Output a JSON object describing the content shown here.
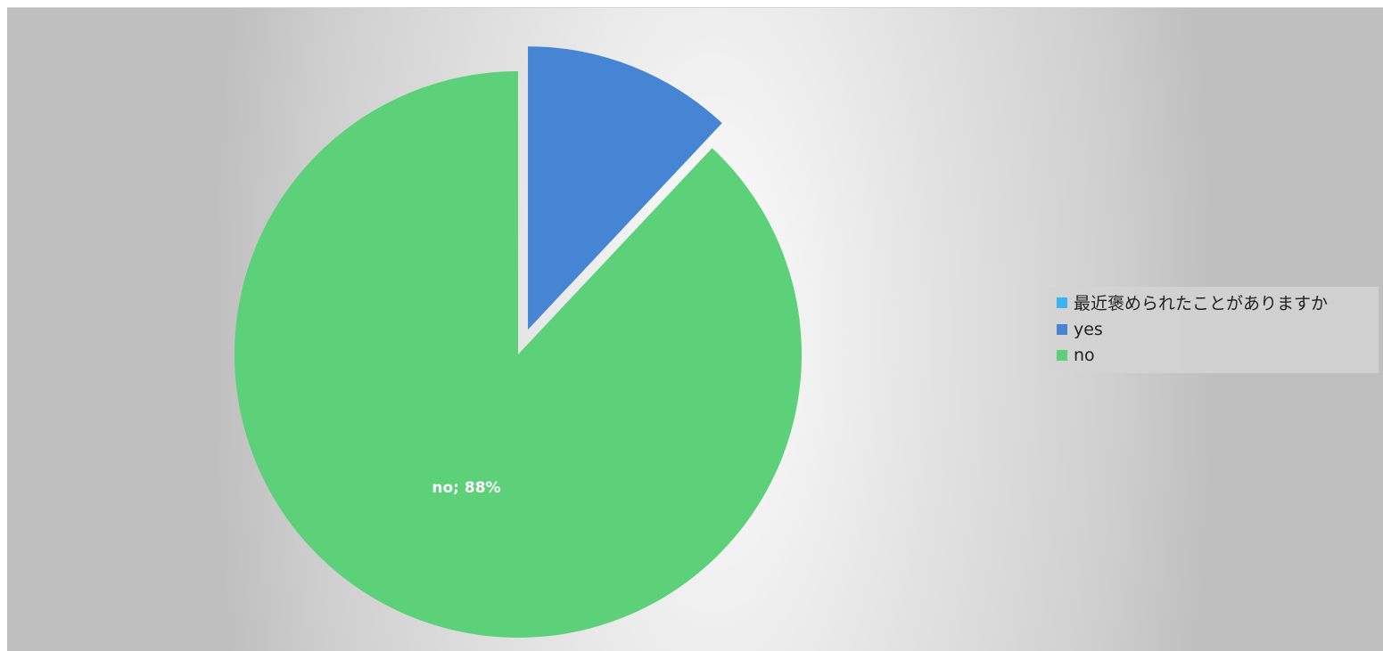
{
  "chart_data": {
    "type": "pie",
    "title": "",
    "series_name": "最近褒められたことがありますか",
    "categories": [
      "yes",
      "no"
    ],
    "values": [
      12,
      88
    ],
    "unit": "%",
    "exploded": [
      "yes"
    ],
    "colors": {
      "series": "#3bb4f2",
      "yes": "#4585d4",
      "no": "#5dd07a"
    },
    "data_labels": [
      {
        "category": "no",
        "text": "no; 88%"
      }
    ],
    "legend": {
      "placement": "right",
      "entries": [
        {
          "label": "最近褒められたことがありますか",
          "color": "#3bb4f2"
        },
        {
          "label": "yes",
          "color": "#4585d4"
        },
        {
          "label": "no",
          "color": "#5dd07a"
        }
      ]
    }
  }
}
